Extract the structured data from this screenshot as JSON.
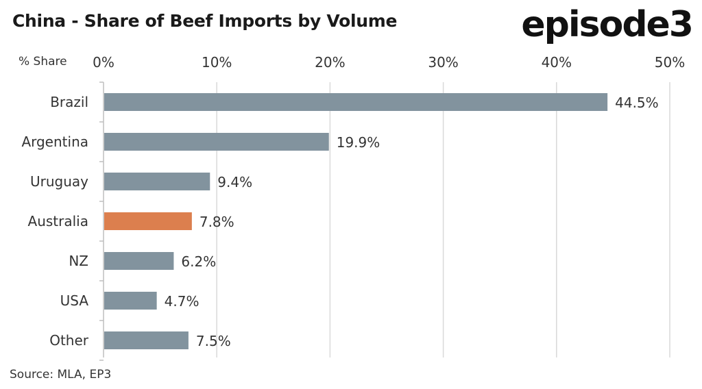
{
  "header": {
    "title": "China - Share of Beef Imports by Volume",
    "logo": "episode3"
  },
  "axis_unit": "% Share",
  "source": "Source: MLA, EP3",
  "chart_data": {
    "type": "bar",
    "orientation": "horizontal",
    "title": "China - Share of Beef Imports by Volume",
    "xlabel": "% Share",
    "ylabel": "",
    "categories": [
      "Brazil",
      "Argentina",
      "Uruguay",
      "Australia",
      "NZ",
      "USA",
      "Other"
    ],
    "values": [
      44.5,
      19.9,
      9.4,
      7.8,
      6.2,
      4.7,
      7.5
    ],
    "data_labels": [
      "44.5%",
      "19.9%",
      "9.4%",
      "7.8%",
      "6.2%",
      "4.7%",
      "7.5%"
    ],
    "xlim": [
      0,
      50
    ],
    "ticks": [
      0,
      10,
      20,
      30,
      40,
      50
    ],
    "tick_labels": [
      "0%",
      "10%",
      "20%",
      "30%",
      "40%",
      "50%"
    ],
    "grid": true,
    "colors": {
      "default": "#82939e",
      "highlight": "#dc7f4e",
      "highlight_category": "Australia",
      "grid": "#d9d9d9"
    }
  }
}
